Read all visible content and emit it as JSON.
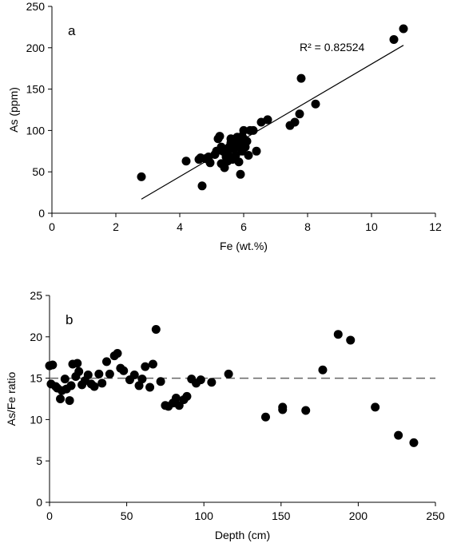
{
  "chart_data": [
    {
      "type": "scatter",
      "panel_label": "a",
      "xlabel": "Fe (wt.%)",
      "ylabel": "As (ppm)",
      "xlim": [
        0,
        12
      ],
      "ylim": [
        0,
        250
      ],
      "xticks": [
        0,
        2,
        4,
        6,
        8,
        10,
        12
      ],
      "yticks": [
        0,
        50,
        100,
        150,
        200,
        250
      ],
      "grid": false,
      "annotation": "R² = 0.82524",
      "trendline": {
        "type": "linear",
        "x": [
          2.8,
          11.0
        ],
        "y": [
          17,
          203
        ]
      },
      "points": [
        [
          2.8,
          44
        ],
        [
          4.2,
          63
        ],
        [
          4.6,
          65
        ],
        [
          4.65,
          67
        ],
        [
          4.7,
          33
        ],
        [
          4.8,
          66
        ],
        [
          4.9,
          68
        ],
        [
          4.95,
          61
        ],
        [
          5.1,
          71
        ],
        [
          5.15,
          75
        ],
        [
          5.2,
          90
        ],
        [
          5.25,
          93
        ],
        [
          5.3,
          60
        ],
        [
          5.35,
          75
        ],
        [
          5.4,
          55
        ],
        [
          5.45,
          68
        ],
        [
          5.5,
          72
        ],
        [
          5.55,
          80
        ],
        [
          5.6,
          85
        ],
        [
          5.6,
          90
        ],
        [
          5.65,
          65
        ],
        [
          5.7,
          78
        ],
        [
          5.7,
          88
        ],
        [
          5.75,
          70
        ],
        [
          5.8,
          92
        ],
        [
          5.85,
          62
        ],
        [
          5.85,
          82
        ],
        [
          5.9,
          85
        ],
        [
          5.9,
          47
        ],
        [
          5.95,
          75
        ],
        [
          6.0,
          90
        ],
        [
          6.0,
          100
        ],
        [
          6.05,
          80
        ],
        [
          6.1,
          87
        ],
        [
          6.15,
          70
        ],
        [
          6.2,
          100
        ],
        [
          6.3,
          100
        ],
        [
          6.4,
          75
        ],
        [
          6.55,
          110
        ],
        [
          6.75,
          113
        ],
        [
          7.45,
          106
        ],
        [
          7.6,
          110
        ],
        [
          7.75,
          120
        ],
        [
          7.8,
          163
        ],
        [
          8.25,
          132
        ],
        [
          10.7,
          210
        ],
        [
          11.0,
          223
        ],
        [
          5.3,
          80
        ],
        [
          5.5,
          63
        ],
        [
          5.65,
          85
        ],
        [
          5.95,
          93
        ]
      ]
    },
    {
      "type": "scatter",
      "panel_label": "b",
      "xlabel": "Depth (cm)",
      "ylabel": "As/Fe ratio",
      "xlim": [
        0,
        250
      ],
      "ylim": [
        0,
        25
      ],
      "xticks": [
        0,
        50,
        100,
        150,
        200,
        250
      ],
      "yticks": [
        0,
        5,
        10,
        15,
        20,
        25
      ],
      "grid": false,
      "reference_line": {
        "y": 15,
        "style": "dashed"
      },
      "points": [
        [
          0,
          16.5
        ],
        [
          1,
          14.3
        ],
        [
          2,
          16.6
        ],
        [
          4,
          14.0
        ],
        [
          5,
          13.8
        ],
        [
          7,
          12.5
        ],
        [
          8,
          13.5
        ],
        [
          10,
          14.9
        ],
        [
          11,
          13.7
        ],
        [
          13,
          12.3
        ],
        [
          14,
          14.1
        ],
        [
          15,
          16.7
        ],
        [
          17,
          15.2
        ],
        [
          18,
          16.8
        ],
        [
          19,
          15.8
        ],
        [
          21,
          14.2
        ],
        [
          23,
          14.7
        ],
        [
          25,
          15.4
        ],
        [
          27,
          14.3
        ],
        [
          29,
          14.0
        ],
        [
          32,
          15.5
        ],
        [
          34,
          14.4
        ],
        [
          37,
          17.0
        ],
        [
          39,
          15.5
        ],
        [
          42,
          17.7
        ],
        [
          44,
          18.0
        ],
        [
          46,
          16.2
        ],
        [
          48,
          15.9
        ],
        [
          52,
          14.8
        ],
        [
          55,
          15.4
        ],
        [
          58,
          14.1
        ],
        [
          60,
          14.9
        ],
        [
          62,
          16.4
        ],
        [
          65,
          13.9
        ],
        [
          67,
          16.7
        ],
        [
          69,
          20.9
        ],
        [
          72,
          14.6
        ],
        [
          75,
          11.7
        ],
        [
          77,
          11.6
        ],
        [
          80,
          12.0
        ],
        [
          82,
          12.6
        ],
        [
          84,
          11.7
        ],
        [
          87,
          12.4
        ],
        [
          89,
          12.8
        ],
        [
          92,
          14.9
        ],
        [
          95,
          14.4
        ],
        [
          98,
          14.8
        ],
        [
          105,
          14.5
        ],
        [
          116,
          15.5
        ],
        [
          140,
          10.3
        ],
        [
          151,
          11.2
        ],
        [
          151,
          11.5
        ],
        [
          166,
          11.1
        ],
        [
          177,
          16.0
        ],
        [
          187,
          20.3
        ],
        [
          195,
          19.6
        ],
        [
          211,
          11.5
        ],
        [
          226,
          8.1
        ],
        [
          236,
          7.2
        ]
      ]
    }
  ]
}
